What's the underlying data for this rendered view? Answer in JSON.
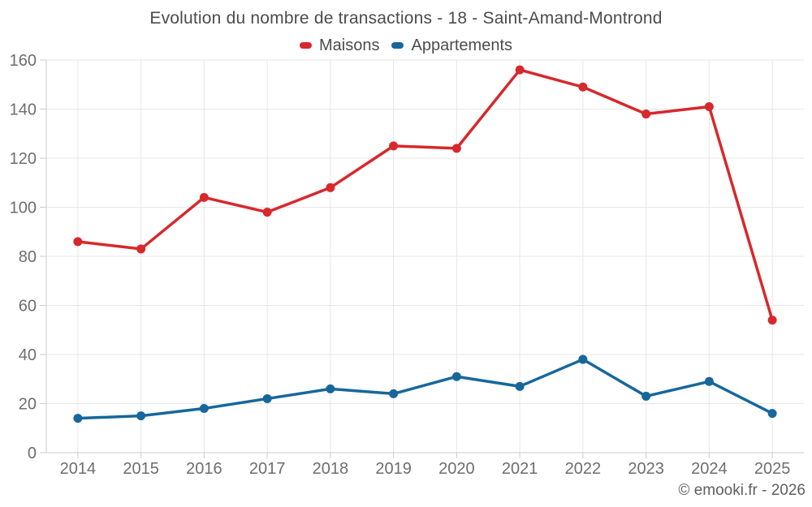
{
  "chart_data": {
    "type": "line",
    "title": "Evolution du nombre de transactions - 18 - Saint-Amand-Montrond",
    "xlabel": "",
    "ylabel": "",
    "categories": [
      "2014",
      "2015",
      "2016",
      "2017",
      "2018",
      "2019",
      "2020",
      "2021",
      "2022",
      "2023",
      "2024",
      "2025"
    ],
    "series": [
      {
        "name": "Maisons",
        "color": "#d7282c",
        "values": [
          86,
          83,
          104,
          98,
          108,
          125,
          124,
          156,
          149,
          138,
          141,
          54
        ]
      },
      {
        "name": "Appartements",
        "color": "#17679b",
        "values": [
          14,
          15,
          18,
          22,
          26,
          24,
          31,
          27,
          38,
          23,
          29,
          16
        ]
      }
    ],
    "ylim": [
      0,
      160
    ],
    "ytick_step": 20,
    "yticks": [
      0,
      20,
      40,
      60,
      80,
      100,
      120,
      140,
      160
    ],
    "grid": true,
    "legend_position": "top",
    "marker": "circle"
  },
  "footer": {
    "copyright": "© emooki.fr - 2026"
  },
  "colors": {
    "grid": "#e7e7e7",
    "axis": "#cccccc",
    "tick_label": "#6e6e6e",
    "title": "#4c4c4c",
    "legend_label": "#4c4c4c",
    "footer": "#5f5f5f",
    "background": "#ffffff"
  }
}
